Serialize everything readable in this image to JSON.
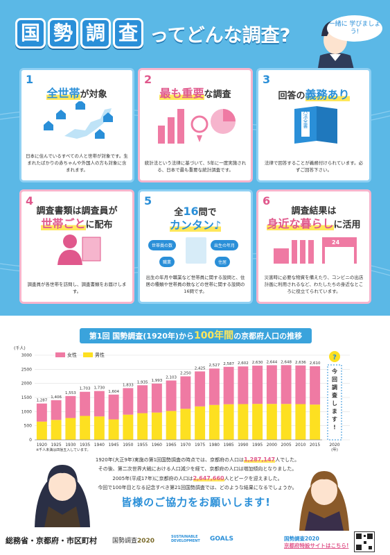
{
  "header": {
    "title_boxes": [
      "国",
      "勢",
      "調",
      "査"
    ],
    "title_rest": "ってどんな調査?",
    "bubble": "一緒に 学びましょう!"
  },
  "cards": [
    {
      "num": "1",
      "head_em": "全世帯",
      "head_rest": "が対象",
      "desc": "日本に住んでいるすべての人と世帯が対象です。生まれたばかりの赤ちゃんや外国人の方も対象に含まれます。"
    },
    {
      "num": "2",
      "head_em": "最も重要",
      "head_rest": "な調査",
      "desc": "統計法という法律に基づいて、5年に一度実施される、日本で最も重要な統計調査です。"
    },
    {
      "num": "3",
      "head_pre": "回答の",
      "head_em": "義務あり",
      "desc": "法律で回答することが義務付けられています。必ずご回答下さい。",
      "book": "六法全書"
    },
    {
      "num": "4",
      "head_pre": "調査書類は調査員が",
      "head_em": "世帯ごと",
      "head_rest": "に配布",
      "desc": "調査員が各世帯を訪問し、調査書類をお届けします。"
    },
    {
      "num": "5",
      "head_pre": "全",
      "head_mid": "16",
      "head_pre2": "問で",
      "head_em": "カンタン♪",
      "desc": "出生の年月や職業など世帯員に関する設問と、住居の種類や世帯員の数などの世帯に関する設問の16問です。",
      "tags": [
        "世帯員の数",
        "出生の年月",
        "職業",
        "住居"
      ]
    },
    {
      "num": "6",
      "head_pre": "調査結果は",
      "head_em": "身近な暮らし",
      "head_rest": "に活用",
      "desc": "災害時に必要な物資を備えたり、コンビニの出店計画に利用されるなど、わたしたちの身近なところに役立てられています。",
      "shop": "24"
    }
  ],
  "chart_data": {
    "type": "bar",
    "title_pre": "第1回 国勢調査(1920年)から",
    "title_big": "100年間",
    "title_post": "の京都府人口の推移",
    "ylabel": "(千人)",
    "ylim": [
      0,
      3000
    ],
    "yticks": [
      0,
      500,
      1000,
      1500,
      2000,
      2500,
      3000
    ],
    "categories": [
      "1920",
      "1925",
      "1930",
      "1935",
      "1940",
      "1945",
      "1950",
      "1955",
      "1960",
      "1965",
      "1970",
      "1975",
      "1980",
      "1985",
      "1990",
      "1995",
      "2000",
      "2005",
      "2010",
      "2015"
    ],
    "totals": [
      1287,
      1406,
      1553,
      1703,
      1730,
      1604,
      1833,
      1935,
      1993,
      2103,
      2250,
      2425,
      2527,
      2587,
      2602,
      2630,
      2644,
      2648,
      2636,
      2610
    ],
    "series": [
      {
        "name": "女性",
        "color": "#ef7aa3",
        "values": [
          640,
          700,
          780,
          855,
          900,
          880,
          940,
          990,
          1025,
          1080,
          1150,
          1240,
          1290,
          1325,
          1335,
          1355,
          1370,
          1375,
          1370,
          1360
        ]
      },
      {
        "name": "男性",
        "color": "#fde021",
        "values": [
          647,
          706,
          773,
          848,
          830,
          724,
          893,
          945,
          968,
          1023,
          1100,
          1185,
          1237,
          1262,
          1267,
          1275,
          1274,
          1273,
          1266,
          1250
        ]
      }
    ],
    "future_label": "2020",
    "future_text": "今回調査します!",
    "question": "?",
    "year_unit": "(年)",
    "footnote": "※千人未満は四捨五入しています。",
    "legend": "top-left"
  },
  "notes": {
    "l1_pre": "1920年(大正9年)実施の第1回国勢調査の時点では、京都府の人口は",
    "l1_val": "1,287,147",
    "l1_post": "人でした。",
    "l2": "その後、第二次世界大戦における人口減少を経て、京都府の人口は増加傾向となりました。",
    "l3_pre": "2005年(平成17年)に京都府の人口は",
    "l3_val": "2,647,660",
    "l3_post": "人とピークを迎えました。",
    "l4": "今回で100年目となる記念すべき第21回国勢調査では、どのような結果になるでしょうか。"
  },
  "appeal": "皆様のご協力をお願いします!",
  "footer": {
    "org": "総務省・京都府・市区町村",
    "logo_a": "国勢調査",
    "logo_b": "2020",
    "sdg1": "SUSTAINABLE",
    "sdg2": "DEVELOPMENT",
    "goals": "GOALS",
    "site1": "国勢調査2020",
    "site2": "京都府特設サイトはこちら!"
  }
}
